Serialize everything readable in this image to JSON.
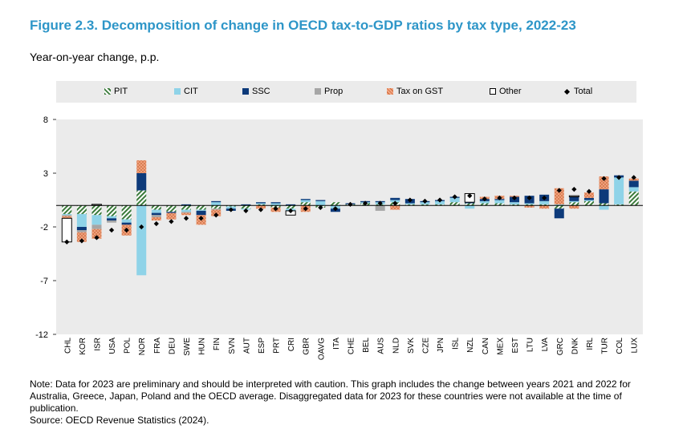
{
  "figure": {
    "title": "Figure 2.3. Decomposition of change in OECD tax-to-GDP ratios by tax type, 2022-23",
    "subtitle": "Year-on-year change, p.p."
  },
  "legend": {
    "pit": "PIT",
    "cit": "CIT",
    "ssc": "SSC",
    "prop": "Prop",
    "gst": "Tax on GST",
    "other": "Other",
    "total": "Total"
  },
  "notes": {
    "note": "Note: Data for 2023 are preliminary and should be interpreted with caution. This graph includes the change between years 2021 and 2022 for Australia, Greece, Japan, Poland and the OECD average. Disaggregated data for 2023 for these countries were not available at the time of publication.",
    "source": "Source: OECD Revenue Statistics (2024)."
  },
  "colors": {
    "pit": "#3a7a3a",
    "cit": "#8fd3e8",
    "ssc": "#0d3a7a",
    "prop": "#a6a6a6",
    "gst": "#f4a582",
    "other": "#ffffff",
    "total": "#000000",
    "plot_bg": "#ebebeb"
  },
  "chart_data": {
    "type": "bar",
    "stacked": true,
    "ylim": [
      -12,
      8
    ],
    "yticks": [
      8,
      3,
      -2,
      -7,
      -12
    ],
    "grid": false,
    "legend_position": "top",
    "categories": [
      "CHL",
      "KOR",
      "ISR",
      "USA",
      "POL",
      "NOR",
      "FRA",
      "DEU",
      "SWE",
      "HUN",
      "FIN",
      "SVN",
      "AUT",
      "ESP",
      "PRT",
      "CRI",
      "GBR",
      "OAVG",
      "ITA",
      "CHE",
      "BEL",
      "AUS",
      "NLD",
      "SVK",
      "CZE",
      "JPN",
      "ISL",
      "NZL",
      "CAN",
      "MEX",
      "EST",
      "LTU",
      "LVA",
      "GRC",
      "DNK",
      "IRL",
      "TUR",
      "COL",
      "LUX"
    ],
    "series": [
      {
        "name": "PIT",
        "key": "pit",
        "values": [
          -0.8,
          -0.8,
          -0.9,
          -1.0,
          -1.3,
          1.4,
          -0.4,
          -0.6,
          -0.4,
          -0.4,
          -0.3,
          -0.1,
          -0.3,
          0.1,
          -0.2,
          -0.3,
          0.3,
          -0.2,
          0.3,
          0.1,
          0.2,
          0.1,
          0.3,
          0.1,
          0.1,
          0.1,
          0.3,
          0.2,
          0.2,
          0.2,
          0.1,
          0.1,
          0.1,
          -0.3,
          0.3,
          0.4,
          0.2,
          0.1,
          1.3
        ]
      },
      {
        "name": "CIT",
        "key": "cit",
        "values": [
          -0.1,
          -1.2,
          -0.9,
          -0.2,
          -0.3,
          -6.5,
          -0.3,
          0.0,
          -0.2,
          -0.1,
          0.3,
          -0.2,
          -0.1,
          0.1,
          0.2,
          -0.2,
          0.2,
          0.4,
          -0.3,
          0.0,
          0.1,
          0.2,
          0.2,
          0.1,
          0.2,
          0.3,
          0.4,
          -0.3,
          0.2,
          0.3,
          0.2,
          0.1,
          0.3,
          0.1,
          0.1,
          0.1,
          -0.4,
          2.5,
          0.4
        ]
      },
      {
        "name": "SSC",
        "key": "ssc",
        "values": [
          0.0,
          -0.3,
          0.0,
          -0.2,
          -0.2,
          1.6,
          -0.2,
          -0.1,
          0.1,
          -0.4,
          0.1,
          -0.2,
          0.1,
          0.1,
          0.1,
          0.1,
          0.1,
          0.1,
          -0.3,
          0.1,
          0.1,
          0.1,
          0.2,
          0.4,
          0.1,
          0.1,
          0.1,
          0.1,
          0.2,
          0.1,
          0.5,
          0.7,
          0.6,
          -0.9,
          0.4,
          0.2,
          1.3,
          0.2,
          0.6
        ]
      },
      {
        "name": "Prop",
        "key": "prop",
        "values": [
          -0.1,
          -0.2,
          -0.4,
          -0.2,
          0.0,
          0.0,
          -0.2,
          0.0,
          -0.1,
          0.0,
          -0.1,
          0.0,
          0.0,
          0.0,
          0.0,
          0.0,
          0.0,
          0.0,
          0.0,
          0.0,
          0.0,
          -0.5,
          0.0,
          0.0,
          0.0,
          0.0,
          0.0,
          0.0,
          0.0,
          0.0,
          0.0,
          0.0,
          0.0,
          0.0,
          0.0,
          0.0,
          0.0,
          0.0,
          0.0
        ]
      },
      {
        "name": "Tax on GST",
        "key": "gst",
        "values": [
          -0.2,
          -0.9,
          -0.9,
          0.0,
          -1.0,
          1.2,
          -0.3,
          -0.6,
          -0.2,
          -0.9,
          -0.6,
          0.0,
          0.0,
          -0.3,
          -0.4,
          0.0,
          -0.6,
          0.0,
          0.0,
          0.0,
          0.0,
          0.0,
          -0.4,
          0.0,
          0.0,
          0.0,
          0.0,
          0.0,
          0.2,
          0.3,
          0.1,
          -0.2,
          -0.3,
          1.5,
          -0.3,
          0.5,
          1.2,
          0.0,
          0.2
        ]
      },
      {
        "name": "Other",
        "key": "other",
        "values": [
          -2.2,
          0.0,
          0.1,
          0.0,
          0.0,
          0.0,
          0.0,
          0.0,
          0.0,
          0.0,
          0.0,
          0.0,
          0.0,
          0.0,
          0.0,
          -0.4,
          0.0,
          0.0,
          0.0,
          0.0,
          0.0,
          0.0,
          0.0,
          0.0,
          0.0,
          0.0,
          0.0,
          0.8,
          0.0,
          0.0,
          0.0,
          0.0,
          0.0,
          0.0,
          0.1,
          0.0,
          0.0,
          0.0,
          0.0
        ]
      },
      {
        "name": "Total",
        "key": "total",
        "type": "marker",
        "values": [
          -3.4,
          -3.3,
          -3.0,
          -2.3,
          -2.3,
          -2.0,
          -1.7,
          -1.5,
          -1.2,
          -1.2,
          -0.9,
          -0.4,
          -0.5,
          -0.4,
          -0.3,
          -0.5,
          -0.3,
          -0.2,
          -0.3,
          0.1,
          0.2,
          0.2,
          0.2,
          0.5,
          0.4,
          0.5,
          0.8,
          0.9,
          0.6,
          0.7,
          0.7,
          0.7,
          0.7,
          1.4,
          1.5,
          1.3,
          2.5,
          2.6,
          2.6
        ]
      }
    ]
  }
}
